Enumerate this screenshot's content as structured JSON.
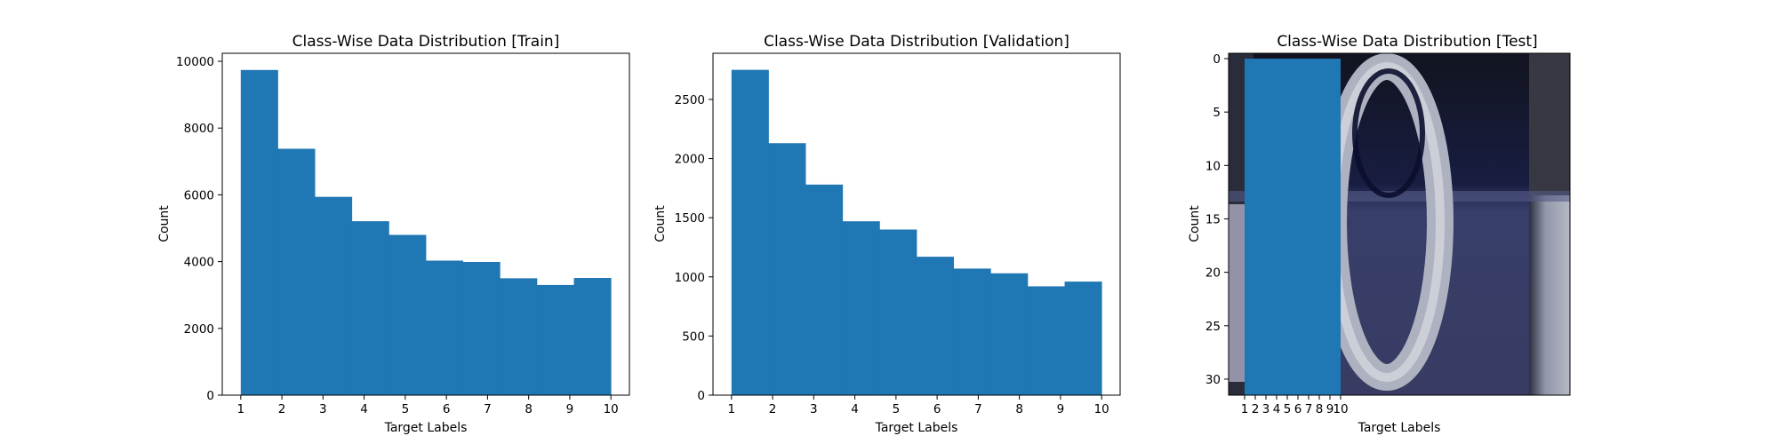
{
  "chart_data": [
    {
      "type": "bar",
      "title": "Class-Wise Data Distribution [Train]",
      "xlabel": "Target Labels",
      "ylabel": "Count",
      "bar_color": "#1f77b4",
      "xlim": [
        0.55,
        10.45
      ],
      "ylim": [
        0,
        10240
      ],
      "xticks": [
        1,
        2,
        3,
        4,
        5,
        6,
        7,
        8,
        9,
        10
      ],
      "yticks": [
        0,
        2000,
        4000,
        6000,
        8000,
        10000
      ],
      "bins": [
        [
          1.0,
          1.9
        ],
        [
          1.9,
          2.8
        ],
        [
          2.8,
          3.7
        ],
        [
          3.7,
          4.6
        ],
        [
          4.6,
          5.5
        ],
        [
          5.5,
          6.4
        ],
        [
          6.4,
          7.3
        ],
        [
          7.3,
          8.2
        ],
        [
          8.2,
          9.1
        ],
        [
          9.1,
          10.0
        ]
      ],
      "values": [
        9740,
        7380,
        5940,
        5210,
        4800,
        4030,
        3990,
        3500,
        3300,
        3510
      ],
      "grid": false
    },
    {
      "type": "bar",
      "title": "Class-Wise Data Distribution [Validation]",
      "xlabel": "Target Labels",
      "ylabel": "Count",
      "bar_color": "#1f77b4",
      "xlim": [
        0.55,
        10.45
      ],
      "ylim": [
        0,
        2890
      ],
      "xticks": [
        1,
        2,
        3,
        4,
        5,
        6,
        7,
        8,
        9,
        10
      ],
      "yticks": [
        0,
        500,
        1000,
        1500,
        2000,
        2500
      ],
      "bins": [
        [
          1.0,
          1.9
        ],
        [
          1.9,
          2.8
        ],
        [
          2.8,
          3.7
        ],
        [
          3.7,
          4.6
        ],
        [
          4.6,
          5.5
        ],
        [
          5.5,
          6.4
        ],
        [
          6.4,
          7.3
        ],
        [
          7.3,
          8.2
        ],
        [
          8.2,
          9.1
        ],
        [
          9.1,
          10.0
        ]
      ],
      "values": [
        2750,
        2130,
        1780,
        1470,
        1400,
        1170,
        1070,
        1030,
        920,
        960
      ],
      "grid": false
    },
    {
      "type": "bar",
      "title": "Class-Wise Data Distribution [Test]",
      "xlabel": "Target Labels",
      "ylabel": "Count",
      "bar_color": "#1f77b4",
      "note": "histogram drawn over an image of a handwritten zero; pixel-row axis",
      "xlim": [
        -0.5,
        31.5
      ],
      "ylim": [
        31.5,
        -0.5
      ],
      "xticks": [
        1,
        2,
        3,
        4,
        5,
        6,
        7,
        8,
        9,
        10
      ],
      "yticks": [
        0,
        5,
        10,
        15,
        20,
        25,
        30
      ],
      "bar_extent": [
        1.0,
        10.0
      ],
      "bar_top": 0,
      "grid": false
    }
  ]
}
